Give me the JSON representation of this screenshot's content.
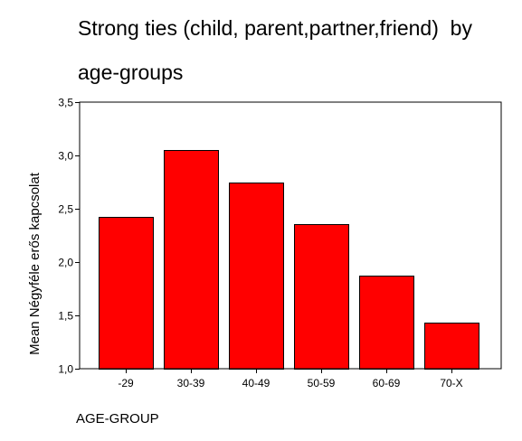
{
  "chart_data": {
    "type": "bar",
    "title_lines": [
      "Strong ties (child, parent,partner,friend)  by",
      "age-groups"
    ],
    "xlabel": "AGE-GROUP",
    "ylabel": "Mean Négyféle erős kapcsolat",
    "categories": [
      "-29",
      "30-39",
      "40-49",
      "50-59",
      "60-69",
      "70-X"
    ],
    "values": [
      2.42,
      3.05,
      2.75,
      2.36,
      1.87,
      1.43
    ],
    "ylim": [
      1.0,
      3.5
    ],
    "yticks": [
      "1,0",
      "1,5",
      "2,0",
      "2,5",
      "3,0",
      "3,5"
    ],
    "ytick_values": [
      1.0,
      1.5,
      2.0,
      2.5,
      3.0,
      3.5
    ],
    "grid": false,
    "legend": "none",
    "bar_color": "#ff0000",
    "edge_color": "#000000"
  }
}
